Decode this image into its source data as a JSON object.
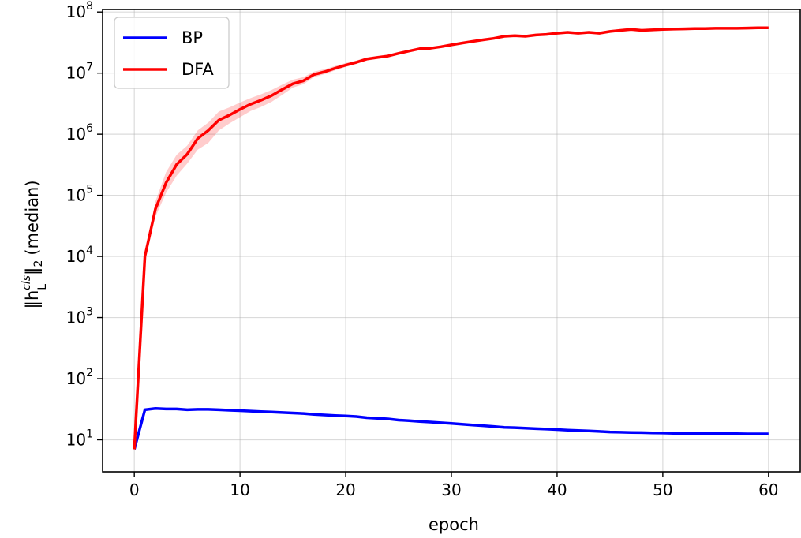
{
  "chart_data": {
    "type": "line",
    "title": "",
    "xlabel": "epoch",
    "ylabel_parts": {
      "base": "‖h",
      "sup": "cls",
      "sub": "L",
      "tail": "‖",
      "tail_sub": "2",
      "suffix": "(median)"
    },
    "xlim": [
      -3,
      63
    ],
    "ylim": [
      3,
      110000000
    ],
    "yscale": "log",
    "grid": true,
    "legend_position": "top-left",
    "x_ticks": [
      {
        "value": 0,
        "label": "0"
      },
      {
        "value": 10,
        "label": "10"
      },
      {
        "value": 20,
        "label": "20"
      },
      {
        "value": 30,
        "label": "30"
      },
      {
        "value": 40,
        "label": "40"
      },
      {
        "value": 50,
        "label": "50"
      },
      {
        "value": 60,
        "label": "60"
      }
    ],
    "y_ticks": [
      {
        "value": 10,
        "base": "10",
        "exp": "1"
      },
      {
        "value": 100,
        "base": "10",
        "exp": "2"
      },
      {
        "value": 1000,
        "base": "10",
        "exp": "3"
      },
      {
        "value": 10000,
        "base": "10",
        "exp": "4"
      },
      {
        "value": 100000,
        "base": "10",
        "exp": "5"
      },
      {
        "value": 1000000,
        "base": "10",
        "exp": "6"
      },
      {
        "value": 10000000,
        "base": "10",
        "exp": "7"
      },
      {
        "value": 100000000,
        "base": "10",
        "exp": "8"
      }
    ],
    "series": [
      {
        "name": "BP",
        "color": "#0000ff",
        "x": [
          0,
          1,
          2,
          3,
          4,
          5,
          6,
          7,
          8,
          9,
          10,
          11,
          12,
          13,
          14,
          15,
          16,
          17,
          18,
          19,
          20,
          21,
          22,
          23,
          24,
          25,
          26,
          27,
          28,
          29,
          30,
          31,
          32,
          33,
          34,
          35,
          36,
          37,
          38,
          39,
          40,
          41,
          42,
          43,
          44,
          45,
          46,
          47,
          48,
          49,
          50,
          51,
          52,
          53,
          54,
          55,
          56,
          57,
          58,
          59,
          60
        ],
        "y": [
          7,
          31,
          32.5,
          32,
          32,
          31,
          31.5,
          31.5,
          31,
          30.5,
          30,
          29.5,
          29,
          28.5,
          28,
          27.5,
          27,
          26,
          25.5,
          25,
          24.5,
          24,
          23,
          22.5,
          22,
          21,
          20.5,
          20,
          19.5,
          19,
          18.5,
          18,
          17.5,
          17,
          16.5,
          16,
          15.8,
          15.5,
          15.2,
          15,
          14.7,
          14.4,
          14.2,
          14,
          13.7,
          13.4,
          13.3,
          13.2,
          13.1,
          13,
          12.9,
          12.8,
          12.8,
          12.7,
          12.7,
          12.6,
          12.6,
          12.6,
          12.5,
          12.5,
          12.5
        ]
      },
      {
        "name": "DFA",
        "color": "#ff0000",
        "band_color": "#ff0000",
        "x": [
          0,
          1,
          2,
          3,
          4,
          5,
          6,
          7,
          8,
          9,
          10,
          11,
          12,
          13,
          14,
          15,
          16,
          17,
          18,
          19,
          20,
          21,
          22,
          23,
          24,
          25,
          26,
          27,
          28,
          29,
          30,
          31,
          32,
          33,
          34,
          35,
          36,
          37,
          38,
          39,
          40,
          41,
          42,
          43,
          44,
          45,
          46,
          47,
          48,
          49,
          50,
          51,
          52,
          53,
          54,
          55,
          56,
          57,
          58,
          59,
          60
        ],
        "y": [
          7,
          10000,
          60000,
          160000,
          320000,
          470000,
          850000,
          1150000,
          1700000,
          2050000,
          2550000,
          3100000,
          3600000,
          4300000,
          5400000,
          6700000,
          7500000,
          9500000,
          10500000,
          12000000,
          13500000,
          15000000,
          17000000,
          18000000,
          19000000,
          21000000,
          23000000,
          25000000,
          25500000,
          27000000,
          29000000,
          31000000,
          33000000,
          35000000,
          37000000,
          40000000,
          41000000,
          40000000,
          42000000,
          43000000,
          45000000,
          46500000,
          45000000,
          46500000,
          45000000,
          48000000,
          50000000,
          52000000,
          50000000,
          51000000,
          52000000,
          52500000,
          53000000,
          53500000,
          53500000,
          54000000,
          54000000,
          54000000,
          54500000,
          55000000,
          55000000
        ],
        "lower": [
          7,
          9000,
          45000,
          110000,
          210000,
          330000,
          560000,
          720000,
          1150000,
          1500000,
          1900000,
          2400000,
          2800000,
          3400000,
          4400000,
          5800000,
          6600000,
          8600000,
          9600000,
          11100000,
          12600000,
          14100000,
          16000000,
          17000000,
          18000000,
          20000000,
          22000000,
          24000000,
          24500000,
          26000000,
          28000000,
          30000000,
          32000000,
          34000000,
          36000000,
          38500000,
          39500000,
          38500000,
          40500000,
          41500000,
          43000000,
          44500000,
          43000000,
          44500000,
          43000000,
          45500000,
          47500000,
          49000000,
          47500000,
          48500000,
          49500000,
          50000000,
          50500000,
          51000000,
          51000000,
          51500000,
          51500000,
          51500000,
          52000000,
          52500000,
          52500000
        ],
        "upper": [
          7,
          11500,
          80000,
          240000,
          460000,
          650000,
          1150000,
          1550000,
          2350000,
          2750000,
          3300000,
          3900000,
          4500000,
          5300000,
          6500000,
          7800000,
          8600000,
          10600000,
          11600000,
          13100000,
          14600000,
          16100000,
          18100000,
          19100000,
          20100000,
          22100000,
          24100000,
          26100000,
          26600000,
          28100000,
          30100000,
          32100000,
          34100000,
          36100000,
          38100000,
          41500000,
          42500000,
          41500000,
          43500000,
          44500000,
          47000000,
          48500000,
          47000000,
          48500000,
          47500000,
          50500000,
          52500000,
          55000000,
          53000000,
          54000000,
          55000000,
          55500000,
          56000000,
          56500000,
          56500000,
          57000000,
          57000000,
          57000000,
          57500000,
          58000000,
          58000000
        ]
      }
    ]
  }
}
